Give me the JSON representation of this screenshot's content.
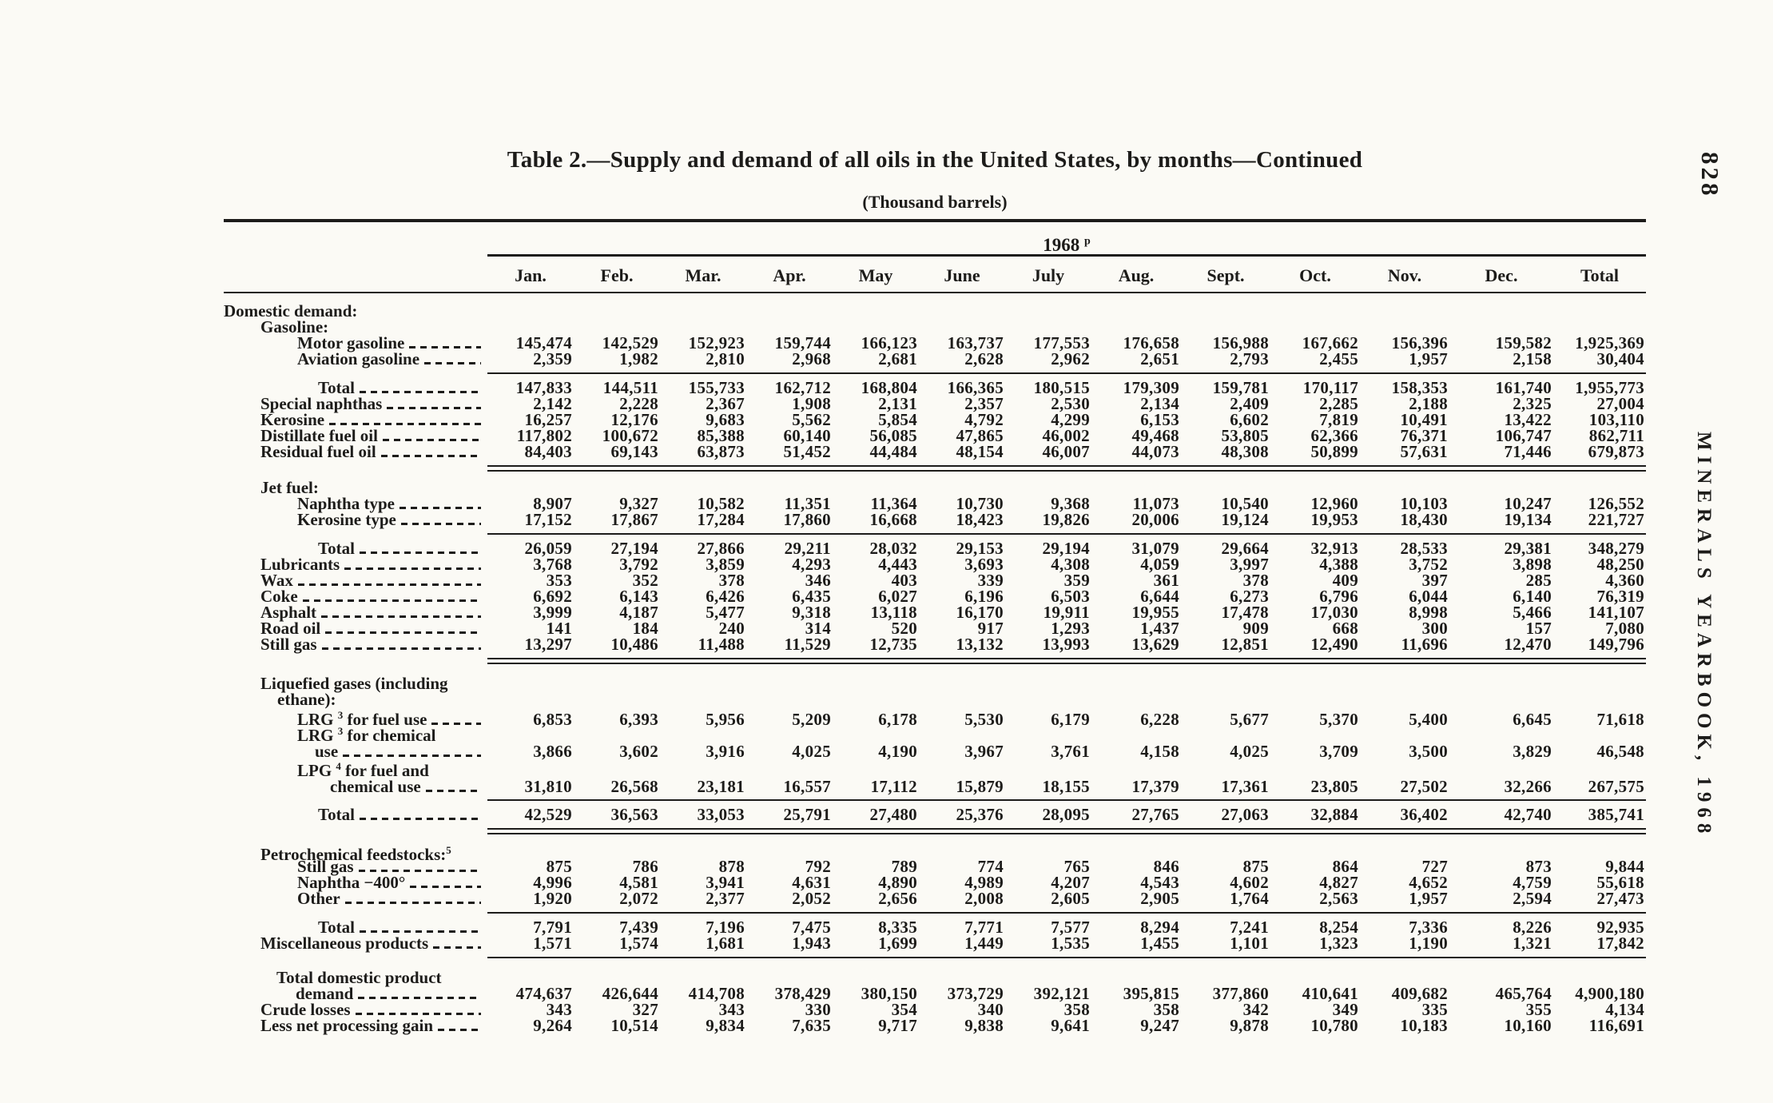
{
  "page": {
    "number": "828",
    "side_text": "MINERALS YEARBOOK, 1968",
    "ink_color": "#1d1c1a",
    "paper_color": "#fbfaf5"
  },
  "table": {
    "title": "Table 2.—Supply and demand of all oils in the United States, by months—Continued",
    "subtitle": "(Thousand barrels)",
    "year_header": "1968",
    "year_sup": "p",
    "columns": [
      "Jan.",
      "Feb.",
      "Mar.",
      "Apr.",
      "May",
      "June",
      "July",
      "Aug.",
      "Sept.",
      "Oct.",
      "Nov.",
      "Dec.",
      "Total"
    ],
    "rows": [
      {
        "kind": "head",
        "lines": [
          [
            "l0",
            "Domestic demand:"
          ]
        ]
      },
      {
        "kind": "head",
        "lines": [
          [
            "l1",
            "Gasoline:"
          ]
        ]
      },
      {
        "kind": "data",
        "lines": [
          [
            "l2",
            "Motor gasoline"
          ]
        ],
        "values": [
          "145,474",
          "142,529",
          "152,923",
          "159,744",
          "166,123",
          "163,737",
          "177,553",
          "176,658",
          "156,988",
          "167,662",
          "156,396",
          "159,582",
          "1,925,369"
        ]
      },
      {
        "kind": "data",
        "lines": [
          [
            "l2",
            "Aviation gasoline"
          ]
        ],
        "values": [
          "2,359",
          "1,982",
          "2,810",
          "2,968",
          "2,681",
          "2,628",
          "2,962",
          "2,651",
          "2,793",
          "2,455",
          "1,957",
          "2,158",
          "30,404"
        ]
      },
      {
        "kind": "rule",
        "style": "single"
      },
      {
        "kind": "data",
        "lines": [
          [
            "lt",
            "Total"
          ]
        ],
        "values": [
          "147,833",
          "144,511",
          "155,733",
          "162,712",
          "168,804",
          "166,365",
          "180,515",
          "179,309",
          "159,781",
          "170,117",
          "158,353",
          "161,740",
          "1,955,773"
        ]
      },
      {
        "kind": "data",
        "lines": [
          [
            "l1",
            "Special naphthas"
          ]
        ],
        "values": [
          "2,142",
          "2,228",
          "2,367",
          "1,908",
          "2,131",
          "2,357",
          "2,530",
          "2,134",
          "2,409",
          "2,285",
          "2,188",
          "2,325",
          "27,004"
        ]
      },
      {
        "kind": "data",
        "lines": [
          [
            "l1",
            "Kerosine"
          ]
        ],
        "values": [
          "16,257",
          "12,176",
          "9,683",
          "5,562",
          "5,854",
          "4,792",
          "4,299",
          "6,153",
          "6,602",
          "7,819",
          "10,491",
          "13,422",
          "103,110"
        ]
      },
      {
        "kind": "data",
        "lines": [
          [
            "l1",
            "Distillate fuel oil"
          ]
        ],
        "values": [
          "117,802",
          "100,672",
          "85,388",
          "60,140",
          "56,085",
          "47,865",
          "46,002",
          "49,468",
          "53,805",
          "62,366",
          "76,371",
          "106,747",
          "862,711"
        ]
      },
      {
        "kind": "data",
        "lines": [
          [
            "l1",
            "Residual fuel oil"
          ]
        ],
        "values": [
          "84,403",
          "69,143",
          "63,873",
          "51,452",
          "44,484",
          "48,154",
          "46,007",
          "44,073",
          "48,308",
          "50,899",
          "57,631",
          "71,446",
          "679,873"
        ]
      },
      {
        "kind": "rule",
        "style": "double"
      },
      {
        "kind": "head",
        "gap": true,
        "lines": [
          [
            "l1",
            "Jet fuel:"
          ]
        ]
      },
      {
        "kind": "data",
        "lines": [
          [
            "l2",
            "Naphtha type"
          ]
        ],
        "values": [
          "8,907",
          "9,327",
          "10,582",
          "11,351",
          "11,364",
          "10,730",
          "9,368",
          "11,073",
          "10,540",
          "12,960",
          "10,103",
          "10,247",
          "126,552"
        ]
      },
      {
        "kind": "data",
        "lines": [
          [
            "l2",
            "Kerosine type"
          ]
        ],
        "values": [
          "17,152",
          "17,867",
          "17,284",
          "17,860",
          "16,668",
          "18,423",
          "19,826",
          "20,006",
          "19,124",
          "19,953",
          "18,430",
          "19,134",
          "221,727"
        ]
      },
      {
        "kind": "rule",
        "style": "single"
      },
      {
        "kind": "data",
        "lines": [
          [
            "lt",
            "Total"
          ]
        ],
        "values": [
          "26,059",
          "27,194",
          "27,866",
          "29,211",
          "28,032",
          "29,153",
          "29,194",
          "31,079",
          "29,664",
          "32,913",
          "28,533",
          "29,381",
          "348,279"
        ]
      },
      {
        "kind": "data",
        "lines": [
          [
            "l1",
            "Lubricants"
          ]
        ],
        "values": [
          "3,768",
          "3,792",
          "3,859",
          "4,293",
          "4,443",
          "3,693",
          "4,308",
          "4,059",
          "3,997",
          "4,388",
          "3,752",
          "3,898",
          "48,250"
        ]
      },
      {
        "kind": "data",
        "lines": [
          [
            "l1",
            "Wax"
          ]
        ],
        "values": [
          "353",
          "352",
          "378",
          "346",
          "403",
          "339",
          "359",
          "361",
          "378",
          "409",
          "397",
          "285",
          "4,360"
        ]
      },
      {
        "kind": "data",
        "lines": [
          [
            "l1",
            "Coke"
          ]
        ],
        "values": [
          "6,692",
          "6,143",
          "6,426",
          "6,435",
          "6,027",
          "6,196",
          "6,503",
          "6,644",
          "6,273",
          "6,796",
          "6,044",
          "6,140",
          "76,319"
        ]
      },
      {
        "kind": "data",
        "lines": [
          [
            "l1",
            "Asphalt"
          ]
        ],
        "values": [
          "3,999",
          "4,187",
          "5,477",
          "9,318",
          "13,118",
          "16,170",
          "19,911",
          "19,955",
          "17,478",
          "17,030",
          "8,998",
          "5,466",
          "141,107"
        ]
      },
      {
        "kind": "data",
        "lines": [
          [
            "l1",
            "Road oil"
          ]
        ],
        "values": [
          "141",
          "184",
          "240",
          "314",
          "520",
          "917",
          "1,293",
          "1,437",
          "909",
          "668",
          "300",
          "157",
          "7,080"
        ]
      },
      {
        "kind": "data",
        "lines": [
          [
            "l1",
            "Still gas"
          ]
        ],
        "values": [
          "13,297",
          "10,486",
          "11,488",
          "11,529",
          "12,735",
          "13,132",
          "13,993",
          "13,629",
          "12,851",
          "12,490",
          "11,696",
          "12,470",
          "149,796"
        ]
      },
      {
        "kind": "rule",
        "style": "double"
      },
      {
        "kind": "head",
        "gap": true,
        "lines": [
          [
            "l1",
            "Liquefied gases (including"
          ],
          [
            "c1",
            "ethane):"
          ]
        ]
      },
      {
        "kind": "data",
        "lines": [
          [
            "l2",
            "LRG ^3^ for fuel use"
          ]
        ],
        "values": [
          "6,853",
          "6,393",
          "5,956",
          "5,209",
          "6,178",
          "5,530",
          "6,179",
          "6,228",
          "5,677",
          "5,370",
          "5,400",
          "6,645",
          "71,618"
        ]
      },
      {
        "kind": "data",
        "lines": [
          [
            "l2",
            "LRG ^3^ for chemical"
          ],
          [
            "c2",
            "use"
          ]
        ],
        "values": [
          "3,866",
          "3,602",
          "3,916",
          "4,025",
          "4,190",
          "3,967",
          "3,761",
          "4,158",
          "4,025",
          "3,709",
          "3,500",
          "3,829",
          "46,548"
        ]
      },
      {
        "kind": "data",
        "lines": [
          [
            "l2",
            "LPG ^4^ for fuel and"
          ],
          [
            "c3",
            "chemical use"
          ]
        ],
        "values": [
          "31,810",
          "26,568",
          "23,181",
          "16,557",
          "17,112",
          "15,879",
          "18,155",
          "17,379",
          "17,361",
          "23,805",
          "27,502",
          "32,266",
          "267,575"
        ]
      },
      {
        "kind": "rule",
        "style": "single"
      },
      {
        "kind": "data",
        "lines": [
          [
            "lt",
            "Total"
          ]
        ],
        "values": [
          "42,529",
          "36,563",
          "33,053",
          "25,791",
          "27,480",
          "25,376",
          "28,095",
          "27,765",
          "27,063",
          "32,884",
          "36,402",
          "42,740",
          "385,741"
        ]
      },
      {
        "kind": "rule",
        "style": "double"
      },
      {
        "kind": "head",
        "gap": true,
        "lines": [
          [
            "l1",
            "Petrochemical feedstocks:^5^"
          ]
        ]
      },
      {
        "kind": "data",
        "lines": [
          [
            "l2",
            "Still gas"
          ]
        ],
        "values": [
          "875",
          "786",
          "878",
          "792",
          "789",
          "774",
          "765",
          "846",
          "875",
          "864",
          "727",
          "873",
          "9,844"
        ]
      },
      {
        "kind": "data",
        "lines": [
          [
            "l2",
            "Naphtha −400°"
          ]
        ],
        "values": [
          "4,996",
          "4,581",
          "3,941",
          "4,631",
          "4,890",
          "4,989",
          "4,207",
          "4,543",
          "4,602",
          "4,827",
          "4,652",
          "4,759",
          "55,618"
        ]
      },
      {
        "kind": "data",
        "lines": [
          [
            "l2",
            "Other"
          ]
        ],
        "values": [
          "1,920",
          "2,072",
          "2,377",
          "2,052",
          "2,656",
          "2,008",
          "2,605",
          "2,905",
          "1,764",
          "2,563",
          "1,957",
          "2,594",
          "27,473"
        ]
      },
      {
        "kind": "rule",
        "style": "single"
      },
      {
        "kind": "data",
        "lines": [
          [
            "lt",
            "Total"
          ]
        ],
        "values": [
          "7,791",
          "7,439",
          "7,196",
          "7,475",
          "8,335",
          "7,771",
          "7,577",
          "8,294",
          "7,241",
          "8,254",
          "7,336",
          "8,226",
          "92,935"
        ]
      },
      {
        "kind": "data",
        "lines": [
          [
            "l1",
            "Miscellaneous products"
          ]
        ],
        "values": [
          "1,571",
          "1,574",
          "1,681",
          "1,943",
          "1,699",
          "1,449",
          "1,535",
          "1,455",
          "1,101",
          "1,323",
          "1,190",
          "1,321",
          "17,842"
        ]
      },
      {
        "kind": "rule",
        "style": "single"
      },
      {
        "kind": "data",
        "gap": true,
        "lines": [
          [
            "tdp",
            "Total domestic product"
          ],
          [
            "dem",
            "demand"
          ]
        ],
        "values": [
          "474,637",
          "426,644",
          "414,708",
          "378,429",
          "380,150",
          "373,729",
          "392,121",
          "395,815",
          "377,860",
          "410,641",
          "409,682",
          "465,764",
          "4,900,180"
        ]
      },
      {
        "kind": "data",
        "lines": [
          [
            "l1",
            "Crude losses"
          ]
        ],
        "values": [
          "343",
          "327",
          "343",
          "330",
          "354",
          "340",
          "358",
          "358",
          "342",
          "349",
          "335",
          "355",
          "4,134"
        ]
      },
      {
        "kind": "data",
        "lines": [
          [
            "l1",
            "Less net processing gain"
          ]
        ],
        "values": [
          "9,264",
          "10,514",
          "9,834",
          "7,635",
          "9,717",
          "9,838",
          "9,641",
          "9,247",
          "9,878",
          "10,780",
          "10,183",
          "10,160",
          "116,691"
        ]
      }
    ]
  }
}
